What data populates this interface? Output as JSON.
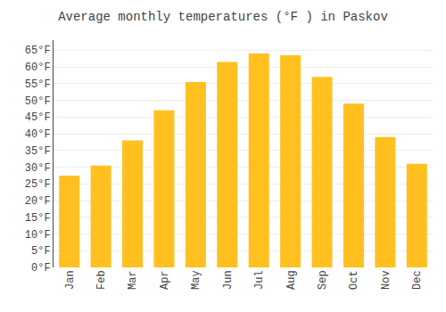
{
  "chart_data": {
    "type": "bar",
    "title": "Average monthly temperatures (°F ) in Paskov",
    "categories": [
      "Jan",
      "Feb",
      "Mar",
      "Apr",
      "May",
      "Jun",
      "Jul",
      "Aug",
      "Sep",
      "Oct",
      "Nov",
      "Dec"
    ],
    "values": [
      27.5,
      30.5,
      38.0,
      47.0,
      55.5,
      61.5,
      64.0,
      63.5,
      57.0,
      49.0,
      39.0,
      31.0
    ],
    "color": "#FFC020",
    "ylim": [
      0,
      68
    ],
    "yticks": [
      {
        "value": 0,
        "label": "0°F"
      },
      {
        "value": 5,
        "label": "5°F"
      },
      {
        "value": 10,
        "label": "10°F"
      },
      {
        "value": 15,
        "label": "15°F"
      },
      {
        "value": 20,
        "label": "20°F"
      },
      {
        "value": 25,
        "label": "25°F"
      },
      {
        "value": 30,
        "label": "30°F"
      },
      {
        "value": 35,
        "label": "35°F"
      },
      {
        "value": 40,
        "label": "40°F"
      },
      {
        "value": 45,
        "label": "45°F"
      },
      {
        "value": 50,
        "label": "50°F"
      },
      {
        "value": 55,
        "label": "55°F"
      },
      {
        "value": 60,
        "label": "60°F"
      },
      {
        "value": 65,
        "label": "65°F"
      }
    ],
    "grid": true
  }
}
